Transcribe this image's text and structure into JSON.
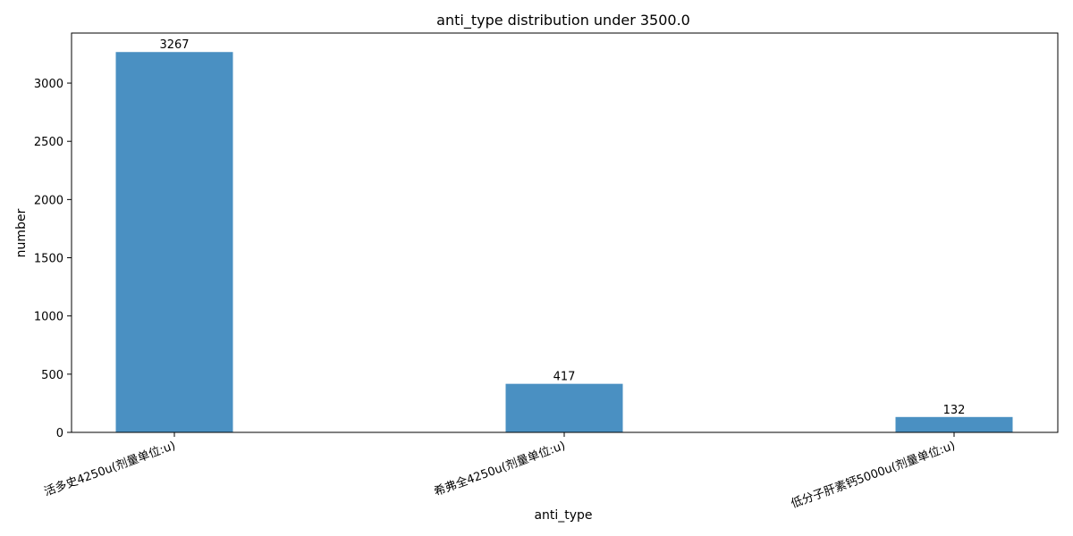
{
  "chart_data": {
    "type": "bar",
    "title": "anti_type distribution under 3500.0",
    "xlabel": "anti_type",
    "ylabel": "number",
    "categories": [
      "活多史4250u(剂量单位:u)",
      "希弗全4250u(剂量单位:u)",
      "低分子肝素钙5000u(剂量单位:u)"
    ],
    "values": [
      3267,
      417,
      132
    ],
    "value_labels": [
      "3267",
      "417",
      "132"
    ],
    "ylim": [
      0,
      3430
    ],
    "yticks": [
      0,
      500,
      1000,
      1500,
      2000,
      2500,
      3000
    ],
    "ytick_labels": [
      "0",
      "500",
      "1000",
      "1500",
      "2000",
      "2500",
      "3000"
    ],
    "bar_color": "#4a90c2",
    "grid": false,
    "legend": "none"
  }
}
